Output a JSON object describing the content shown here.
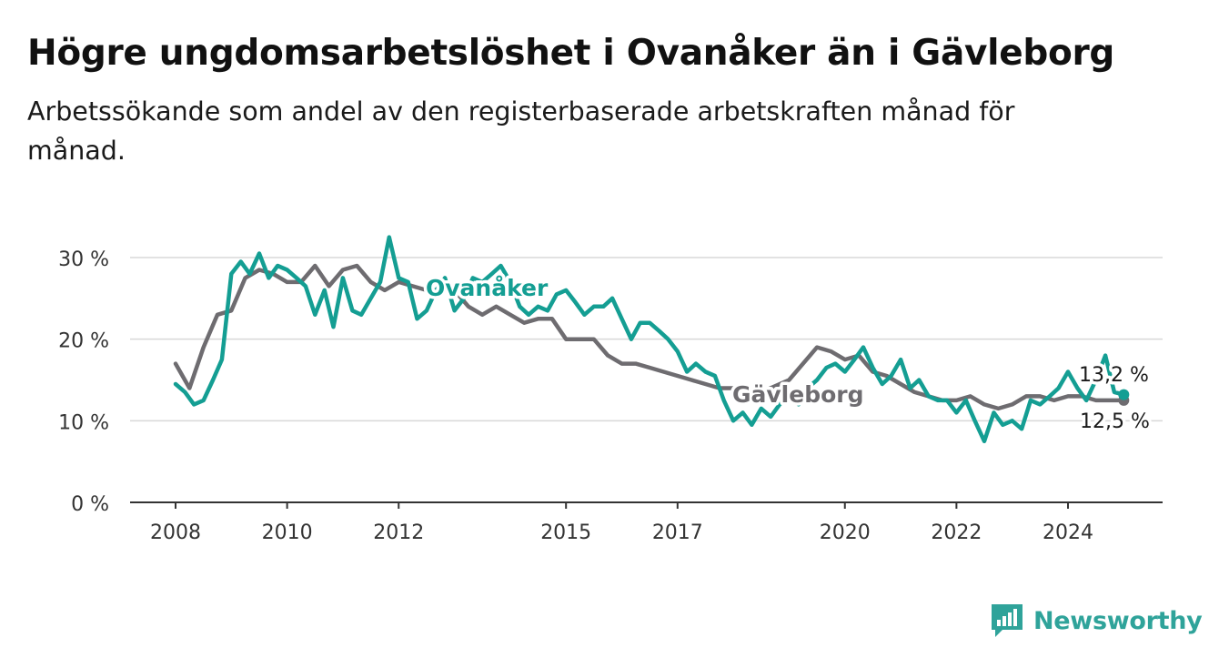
{
  "header": {
    "title": "Högre ungdomsarbetslöshet i Ovanåker än i Gävleborg",
    "subtitle": "Arbetssökande som andel av den registerbaserade arbetskraften månad för månad."
  },
  "brand": {
    "name": "Newsworthy",
    "icon": "newsworthy-logo-icon",
    "color": "#2fa39a"
  },
  "chart_data": {
    "type": "line",
    "title": "Högre ungdomsarbetslöshet i Ovanåker än i Gävleborg",
    "subtitle": "Arbetssökande som andel av den registerbaserade arbetskraften månad för månad.",
    "ylim": [
      0,
      30
    ],
    "yticks": [
      0,
      10,
      20,
      30
    ],
    "ytick_labels": [
      "0 %",
      "10 %",
      "20 %",
      "30 %"
    ],
    "xlim": [
      2008,
      2025.75
    ],
    "xticks": [
      2008,
      2010,
      2012,
      2015,
      2017,
      2020,
      2022,
      2024
    ],
    "xtick_labels": [
      "2008",
      "2010",
      "2012",
      "2015",
      "2017",
      "2020",
      "2022",
      "2024"
    ],
    "grid": true,
    "series": [
      {
        "name": "Gävleborg",
        "color": "#6e6c70",
        "label": "Gävleborg",
        "end_label": "12,5 %",
        "x": [
          2008.0,
          2008.25,
          2008.5,
          2008.75,
          2009.0,
          2009.25,
          2009.5,
          2009.75,
          2010.0,
          2010.25,
          2010.5,
          2010.75,
          2011.0,
          2011.25,
          2011.5,
          2011.75,
          2012.0,
          2012.25,
          2012.5,
          2012.75,
          2013.0,
          2013.25,
          2013.5,
          2013.75,
          2014.0,
          2014.25,
          2014.5,
          2014.75,
          2015.0,
          2015.25,
          2015.5,
          2015.75,
          2016.0,
          2016.25,
          2016.5,
          2016.75,
          2017.0,
          2017.25,
          2017.5,
          2017.75,
          2018.0,
          2018.5,
          2019.0,
          2019.5,
          2019.75,
          2020.0,
          2020.25,
          2020.5,
          2020.75,
          2021.0,
          2021.25,
          2021.5,
          2021.75,
          2022.0,
          2022.25,
          2022.5,
          2022.75,
          2023.0,
          2023.25,
          2023.5,
          2023.75,
          2024.0,
          2024.25,
          2024.5,
          2024.75,
          2025.0
        ],
        "values": [
          17.0,
          14.0,
          19.0,
          23.0,
          23.5,
          27.5,
          28.5,
          28.0,
          27.0,
          27.0,
          29.0,
          26.5,
          28.5,
          29.0,
          27.0,
          26.0,
          27.0,
          26.5,
          26.0,
          26.0,
          26.0,
          24.0,
          23.0,
          24.0,
          23.0,
          22.0,
          22.5,
          22.5,
          20.0,
          20.0,
          20.0,
          18.0,
          17.0,
          17.0,
          16.5,
          16.0,
          15.5,
          15.0,
          14.5,
          14.0,
          14.0,
          13.5,
          15.0,
          19.0,
          18.5,
          17.5,
          18.0,
          16.0,
          15.5,
          14.5,
          13.5,
          13.0,
          12.5,
          12.5,
          13.0,
          12.0,
          11.5,
          12.0,
          13.0,
          13.0,
          12.5,
          13.0,
          13.0,
          12.5,
          12.5,
          12.5
        ]
      },
      {
        "name": "Ovanåker",
        "color": "#149e93",
        "label": "Ovanåker",
        "end_label": "13,2 %",
        "x": [
          2008.0,
          2008.17,
          2008.33,
          2008.5,
          2008.67,
          2008.83,
          2009.0,
          2009.17,
          2009.33,
          2009.5,
          2009.67,
          2009.83,
          2010.0,
          2010.17,
          2010.33,
          2010.5,
          2010.67,
          2010.83,
          2011.0,
          2011.17,
          2011.33,
          2011.5,
          2011.67,
          2011.83,
          2012.0,
          2012.17,
          2012.33,
          2012.5,
          2012.67,
          2012.83,
          2013.0,
          2013.17,
          2013.33,
          2013.5,
          2013.67,
          2013.83,
          2014.0,
          2014.17,
          2014.33,
          2014.5,
          2014.67,
          2014.83,
          2015.0,
          2015.17,
          2015.33,
          2015.5,
          2015.67,
          2015.83,
          2016.0,
          2016.17,
          2016.33,
          2016.5,
          2016.67,
          2016.83,
          2017.0,
          2017.17,
          2017.33,
          2017.5,
          2017.67,
          2017.83,
          2018.0,
          2018.17,
          2018.33,
          2018.5,
          2018.67,
          2018.83,
          2019.0,
          2019.17,
          2019.33,
          2019.5,
          2019.67,
          2019.83,
          2020.0,
          2020.17,
          2020.33,
          2020.5,
          2020.67,
          2020.83,
          2021.0,
          2021.17,
          2021.33,
          2021.5,
          2021.67,
          2021.83,
          2022.0,
          2022.17,
          2022.33,
          2022.5,
          2022.67,
          2022.83,
          2023.0,
          2023.17,
          2023.33,
          2023.5,
          2023.67,
          2023.83,
          2024.0,
          2024.17,
          2024.33,
          2024.5,
          2024.67,
          2024.83,
          2025.0
        ],
        "values": [
          14.5,
          13.5,
          12.0,
          12.5,
          15.0,
          17.5,
          28.0,
          29.5,
          28.0,
          30.5,
          27.5,
          29.0,
          28.5,
          27.5,
          26.5,
          23.0,
          26.0,
          21.5,
          27.5,
          23.5,
          23.0,
          25.0,
          27.0,
          32.5,
          27.5,
          27.0,
          22.5,
          23.5,
          26.0,
          27.5,
          23.5,
          25.0,
          27.5,
          27.0,
          28.0,
          29.0,
          27.0,
          24.0,
          23.0,
          24.0,
          23.5,
          25.5,
          26.0,
          24.5,
          23.0,
          24.0,
          24.0,
          25.0,
          22.5,
          20.0,
          22.0,
          22.0,
          21.0,
          20.0,
          18.5,
          16.0,
          17.0,
          16.0,
          15.5,
          12.5,
          10.0,
          11.0,
          9.5,
          11.5,
          10.5,
          12.0,
          13.0,
          12.0,
          14.0,
          15.0,
          16.5,
          17.0,
          16.0,
          17.5,
          19.0,
          16.5,
          14.5,
          15.5,
          17.5,
          14.0,
          15.0,
          13.0,
          12.5,
          12.5,
          11.0,
          12.5,
          10.0,
          7.5,
          11.0,
          9.5,
          10.0,
          9.0,
          12.5,
          12.0,
          13.0,
          14.0,
          16.0,
          14.0,
          12.5,
          15.0,
          18.0,
          13.5,
          13.2
        ]
      }
    ]
  }
}
